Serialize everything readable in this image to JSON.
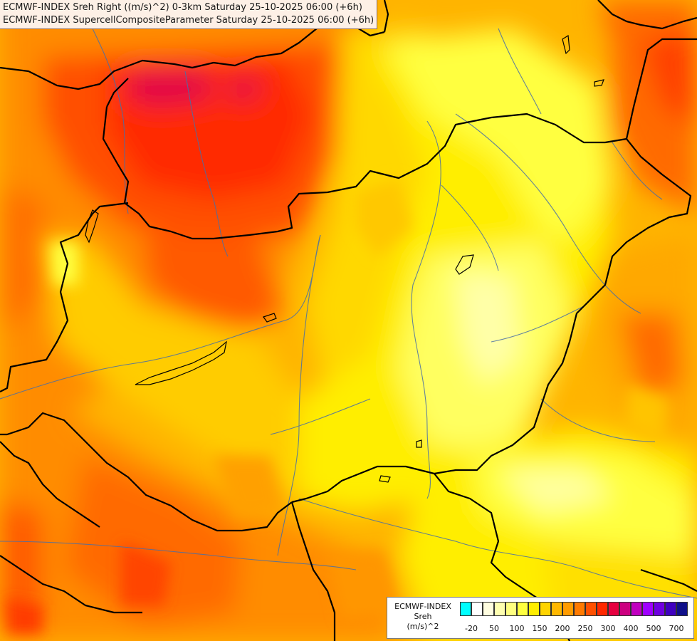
{
  "header": {
    "line1": "ECMWF-INDEX Sreh Right ((m/s)^2) 0-3km Saturday 25-10-2025 06:00 (+6h)",
    "line2": "ECMWF-INDEX SupercellCompositeParameter Saturday 25-10-2025 06:00 (+6h)"
  },
  "legend": {
    "title_line1": "ECMWF-INDEX",
    "title_line2": "Sreh",
    "title_line3": "(m/s)^2",
    "colors": [
      "#00ffff",
      "#ffffff",
      "#fffde0",
      "#ffffb0",
      "#ffff80",
      "#ffff40",
      "#ffee00",
      "#ffd400",
      "#ffb800",
      "#ff9c00",
      "#ff7a00",
      "#ff5000",
      "#ff2800",
      "#e60040",
      "#cc0080",
      "#c000c0",
      "#a000ff",
      "#7000e0",
      "#4000c0",
      "#10108a"
    ],
    "ticks": [
      "-20",
      "50",
      "100",
      "150",
      "200",
      "250",
      "300",
      "400",
      "500",
      "700"
    ]
  },
  "colors": {
    "border": "#000000",
    "river": "#4a6fa5",
    "lake": "#000000"
  }
}
